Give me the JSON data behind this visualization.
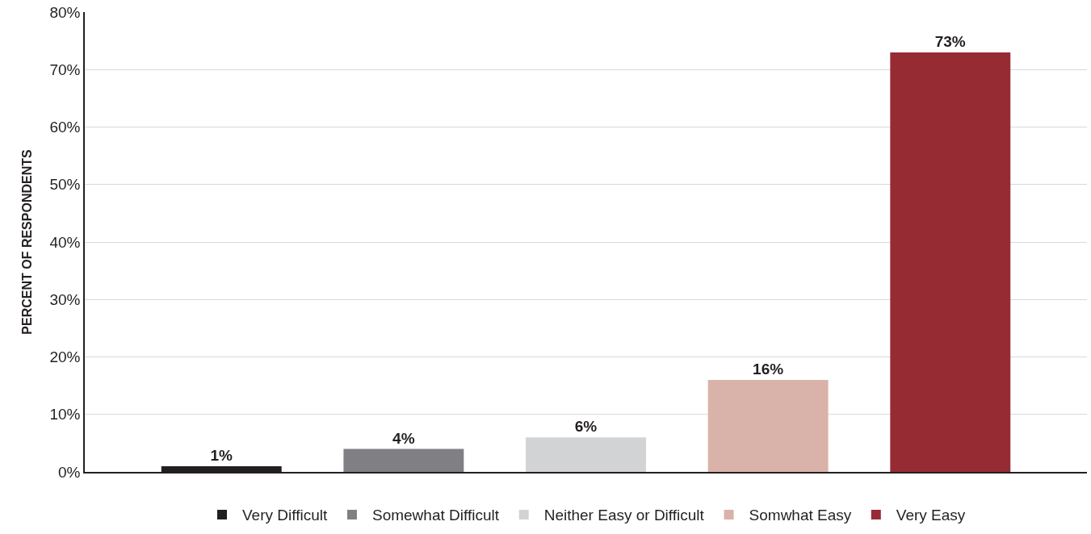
{
  "chart_data": {
    "type": "bar",
    "ylabel": "PERCENT OF RESPONDENTS",
    "categories": [
      null,
      null,
      null,
      null,
      null
    ],
    "series": [
      {
        "name": "Very Difficult",
        "color": "#231f20",
        "values": [
          1,
          null,
          null,
          null,
          null
        ],
        "value_labels": [
          "1%",
          null,
          null,
          null,
          null
        ]
      },
      {
        "name": "Somewhat Difficult",
        "color": "#808084",
        "values": [
          null,
          4,
          null,
          null,
          null
        ],
        "value_labels": [
          null,
          "4%",
          null,
          null,
          null
        ]
      },
      {
        "name": "Neither Easy or Difficult",
        "color": "#d2d3d5",
        "values": [
          null,
          null,
          6,
          null,
          null
        ],
        "value_labels": [
          null,
          null,
          "6%",
          null,
          null
        ]
      },
      {
        "name": "Somwhat Easy",
        "color": "#d9b2a9",
        "values": [
          null,
          null,
          null,
          16,
          null
        ],
        "value_labels": [
          null,
          null,
          null,
          "16%",
          null
        ]
      },
      {
        "name": "Very Easy",
        "color": "#972b34",
        "values": [
          null,
          null,
          null,
          null,
          73
        ],
        "value_labels": [
          null,
          null,
          null,
          null,
          "73%"
        ]
      }
    ],
    "ylim": [
      0,
      80
    ],
    "yticks": [
      {
        "value": 0,
        "label": "0%"
      },
      {
        "value": 10,
        "label": "10%"
      },
      {
        "value": 20,
        "label": "20%"
      },
      {
        "value": 30,
        "label": "30%"
      },
      {
        "value": 40,
        "label": "40%"
      },
      {
        "value": 50,
        "label": "50%"
      },
      {
        "value": 60,
        "label": "60%"
      },
      {
        "value": 70,
        "label": "70%"
      },
      {
        "value": 80,
        "label": "80%"
      }
    ],
    "grid": "y",
    "legend": "bottom"
  }
}
